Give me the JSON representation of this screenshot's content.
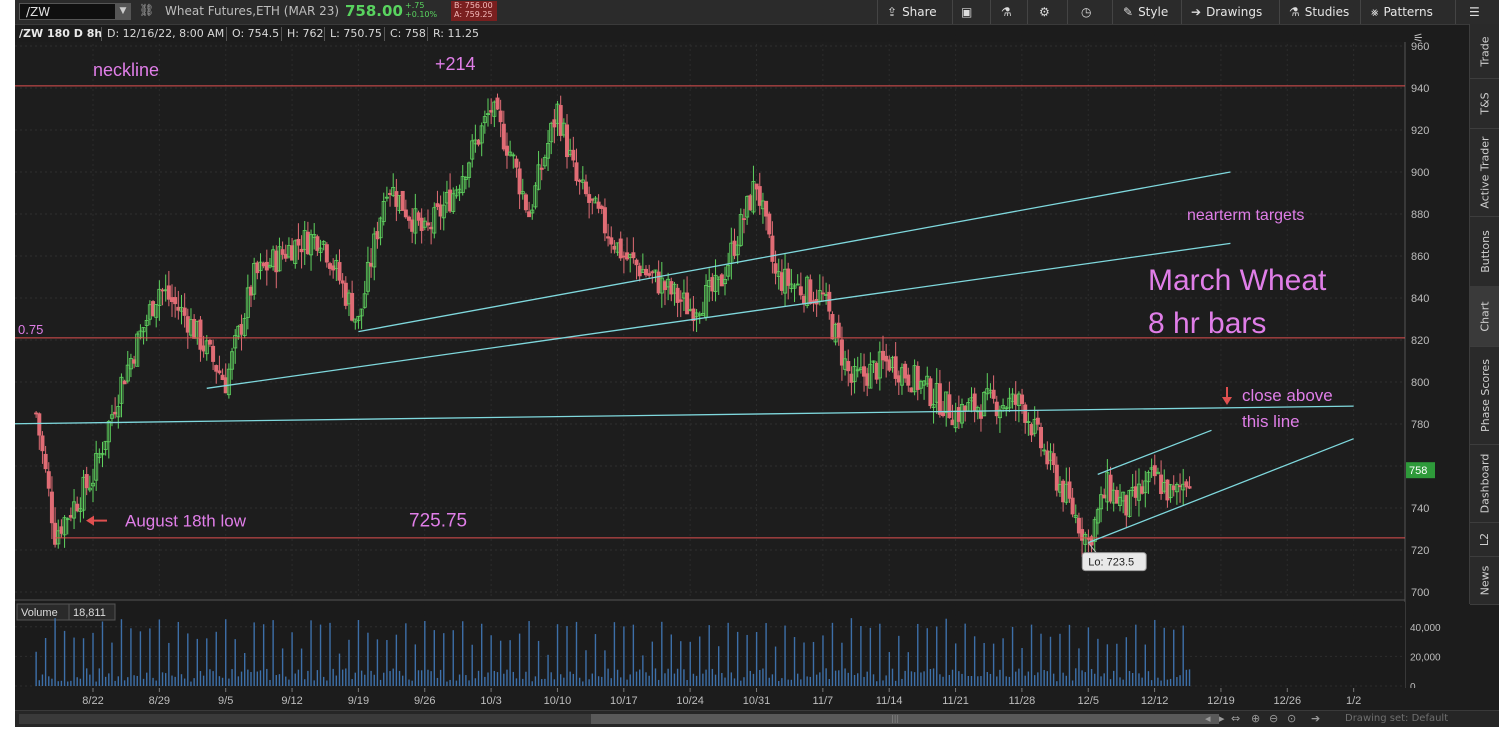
{
  "toolbar": {
    "symbol": "/ZW",
    "description": "Wheat Futures,ETH (MAR 23)",
    "last_price": "758.00",
    "net_change": "+.75",
    "pct_change": "+0.10%",
    "bid": "B: 756.00",
    "ask": "A: 759.25",
    "share_label": "Share",
    "style_label": "Style",
    "drawings_label": "Drawings",
    "studies_label": "Studies",
    "patterns_label": "Patterns"
  },
  "info_bar": {
    "chart_id": "/ZW 180 D 8h",
    "date": "D: 12/16/22, 8:00 AM",
    "open": "O: 754.5",
    "high": "H: 762",
    "low": "L: 750.75",
    "close": "C: 758",
    "range": "R: 11.25"
  },
  "price_axis": [
    "960",
    "940",
    "920",
    "900",
    "880",
    "860",
    "840",
    "820",
    "800",
    "780",
    "760",
    "740",
    "720",
    "700"
  ],
  "price_tag": "758",
  "date_axis": [
    "8/22",
    "8/29",
    "9/5",
    "9/12",
    "9/19",
    "9/26",
    "10/3",
    "10/10",
    "10/17",
    "10/24",
    "10/31",
    "11/7",
    "11/14",
    "11/21",
    "11/28",
    "12/5",
    "12/12",
    "12/19",
    "12/26",
    "1/2"
  ],
  "annotations": {
    "neckline": "neckline",
    "plus214": "+214",
    "fib": "0.75",
    "nearterm": "nearterm targets",
    "title_line1": "March Wheat",
    "title_line2": "8 hr bars",
    "close_above": "close above",
    "this_line": "this line",
    "august_low": "August 18th low",
    "low_value": "725.75",
    "lo_bubble": "Lo: 723.5"
  },
  "volume": {
    "label": "Volume",
    "value": "18,811",
    "axis": [
      "40,000",
      "20,000",
      "0"
    ]
  },
  "right_tabs": [
    "Trade",
    "T&S",
    "Active Trader",
    "Buttons",
    "Chart",
    "Phase Scores",
    "Dashboard",
    "L2",
    "News"
  ],
  "active_tab": "Chart",
  "status": {
    "drawing_set": "Drawing set: Default"
  },
  "colors": {
    "up_candle": "#5fd35f",
    "down_candle": "#e06c75",
    "trendline": "#7fd8dd",
    "horizontal_line": "#e05050",
    "annotation_text": "#e07ee8",
    "volume_bar": "#3d6fa8"
  },
  "chart_data": {
    "type": "candlestick",
    "symbol": "/ZW",
    "timeframe": "8 hr bars",
    "ylim": [
      700,
      960
    ],
    "y_ticks": [
      700,
      720,
      740,
      760,
      780,
      800,
      820,
      840,
      860,
      880,
      900,
      920,
      940,
      960
    ],
    "x_ticks": [
      "8/22",
      "8/29",
      "9/5",
      "9/12",
      "9/19",
      "9/26",
      "10/3",
      "10/10",
      "10/17",
      "10/24",
      "10/31",
      "11/7",
      "11/14",
      "11/21",
      "11/28",
      "12/5",
      "12/12",
      "12/19",
      "12/26",
      "1/2"
    ],
    "close_path": [
      [
        "8/16",
        785
      ],
      [
        "8/18",
        728
      ],
      [
        "8/22",
        755
      ],
      [
        "8/25",
        800
      ],
      [
        "8/29",
        845
      ],
      [
        "9/1",
        830
      ],
      [
        "9/5",
        800
      ],
      [
        "9/8",
        850
      ],
      [
        "9/12",
        865
      ],
      [
        "9/15",
        870
      ],
      [
        "9/19",
        828
      ],
      [
        "9/22",
        895
      ],
      [
        "9/26",
        870
      ],
      [
        "9/29",
        890
      ],
      [
        "10/3",
        930
      ],
      [
        "10/5",
        910
      ],
      [
        "10/7",
        880
      ],
      [
        "10/10",
        930
      ],
      [
        "10/12",
        895
      ],
      [
        "10/17",
        860
      ],
      [
        "10/20",
        850
      ],
      [
        "10/24",
        835
      ],
      [
        "10/27",
        845
      ],
      [
        "10/31",
        895
      ],
      [
        "11/2",
        850
      ],
      [
        "11/7",
        840
      ],
      [
        "11/10",
        800
      ],
      [
        "11/14",
        810
      ],
      [
        "11/17",
        800
      ],
      [
        "11/21",
        785
      ],
      [
        "11/24",
        790
      ],
      [
        "11/28",
        790
      ],
      [
        "12/1",
        760
      ],
      [
        "12/5",
        724
      ],
      [
        "12/7",
        750
      ],
      [
        "12/9",
        740
      ],
      [
        "12/12",
        755
      ],
      [
        "12/14",
        745
      ],
      [
        "12/16",
        758
      ]
    ],
    "horizontal_lines": [
      {
        "label": "neckline",
        "y": 941
      },
      {
        "label": "0.75",
        "y": 821
      },
      {
        "label": "725.75",
        "y": 725.75
      }
    ],
    "volume_axis": [
      0,
      20000,
      40000
    ],
    "last_volume": 18811,
    "low_marker": 723.5
  }
}
